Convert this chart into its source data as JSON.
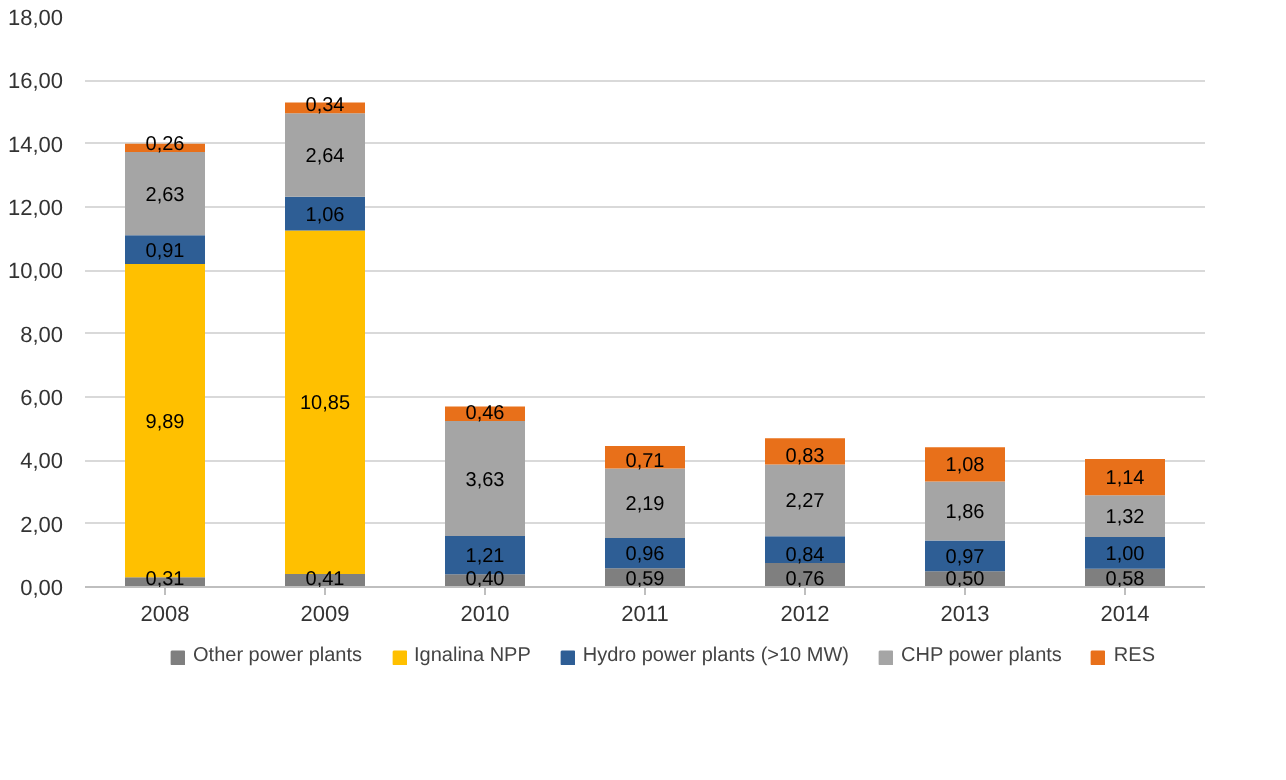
{
  "chart_data": {
    "type": "bar",
    "stacked": true,
    "categories": [
      "2008",
      "2009",
      "2010",
      "2011",
      "2012",
      "2013",
      "2014"
    ],
    "ylim": [
      0,
      18
    ],
    "yticks": [
      {
        "value": 0,
        "label": "0,00"
      },
      {
        "value": 2,
        "label": "2,00"
      },
      {
        "value": 4,
        "label": "4,00"
      },
      {
        "value": 6,
        "label": "6,00"
      },
      {
        "value": 8,
        "label": "8,00"
      },
      {
        "value": 10,
        "label": "10,00"
      },
      {
        "value": 12,
        "label": "12,00"
      },
      {
        "value": 14,
        "label": "14,00"
      },
      {
        "value": 16,
        "label": "16,00"
      },
      {
        "value": 18,
        "label": "18,00"
      }
    ],
    "grid": "y",
    "legend": "bottom",
    "series": [
      {
        "name": "Other power plants",
        "color": "#7f7f7f",
        "values": [
          0.31,
          0.41,
          0.4,
          0.59,
          0.76,
          0.5,
          0.58
        ],
        "value_labels": [
          "0,31",
          "0,41",
          "0,40",
          "0,59",
          "0,76",
          "0,50",
          "0,58"
        ]
      },
      {
        "name": "Ignalina NPP",
        "color": "#ffc000",
        "values": [
          9.89,
          10.85,
          null,
          null,
          null,
          null,
          null
        ],
        "value_labels": [
          "9,89",
          "10,85",
          null,
          null,
          null,
          null,
          null
        ]
      },
      {
        "name": "Hydro power plants (>10 MW)",
        "color": "#2e5e95",
        "values": [
          0.91,
          1.06,
          1.21,
          0.96,
          0.84,
          0.97,
          1.0
        ],
        "value_labels": [
          "0,91",
          "1,06",
          "1,21",
          "0,96",
          "0,84",
          "0,97",
          "1,00"
        ]
      },
      {
        "name": "CHP power plants",
        "color": "#a5a5a5",
        "values": [
          2.63,
          2.64,
          3.63,
          2.19,
          2.27,
          1.86,
          1.32
        ],
        "value_labels": [
          "2,63",
          "2,64",
          "3,63",
          "2,19",
          "2,27",
          "1,86",
          "1,32"
        ]
      },
      {
        "name": "RES",
        "color": "#e8701a",
        "values": [
          0.26,
          0.34,
          0.46,
          0.71,
          0.83,
          1.08,
          1.14
        ],
        "value_labels": [
          "0,26",
          "0,34",
          "0,46",
          "0,71",
          "0,83",
          "1,08",
          "1,14"
        ]
      }
    ]
  }
}
